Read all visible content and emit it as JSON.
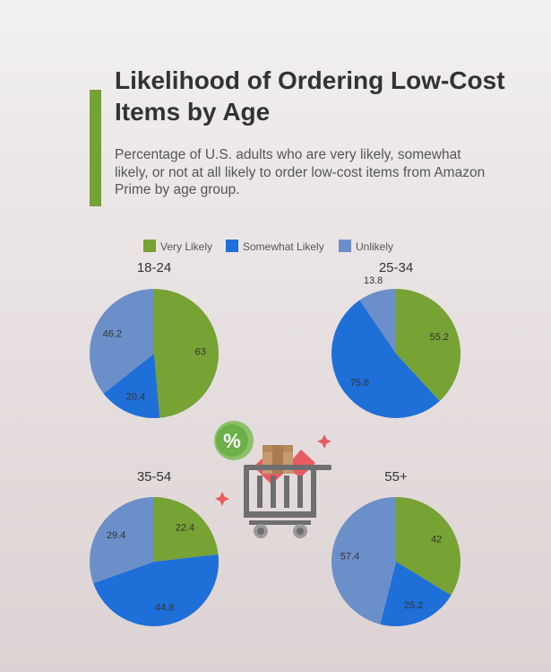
{
  "title": "Likelihood of Ordering Low-Cost Items by Age",
  "subtitle": "Percentage of U.S. adults who are very likely, somewhat likely, or not at all likely to order low-cost items from Amazon Prime by age group.",
  "colors": {
    "accent": "#76a03a",
    "very_likely": "#77a234",
    "somewhat_likely": "#1f6fd8",
    "unlikely": "#6b8fc8"
  },
  "illustration": {
    "icons": [
      "percent-badge-icon",
      "shopping-cart-icon",
      "package-box-icon",
      "sparkle-icon"
    ],
    "badge_text": "%"
  },
  "chart_data": {
    "type": "pie",
    "legend": [
      "Very Likely",
      "Somewhat Likely",
      "Unlikely"
    ],
    "legend_placement": "top",
    "pies": [
      {
        "label": "18-24",
        "values": [
          63,
          20.4,
          46.2
        ]
      },
      {
        "label": "25-34",
        "values": [
          55.2,
          75.6,
          13.8
        ]
      },
      {
        "label": "35-54",
        "values": [
          22.4,
          44.8,
          29.4
        ]
      },
      {
        "label": "55+",
        "values": [
          42,
          25.2,
          57.4
        ]
      }
    ]
  }
}
